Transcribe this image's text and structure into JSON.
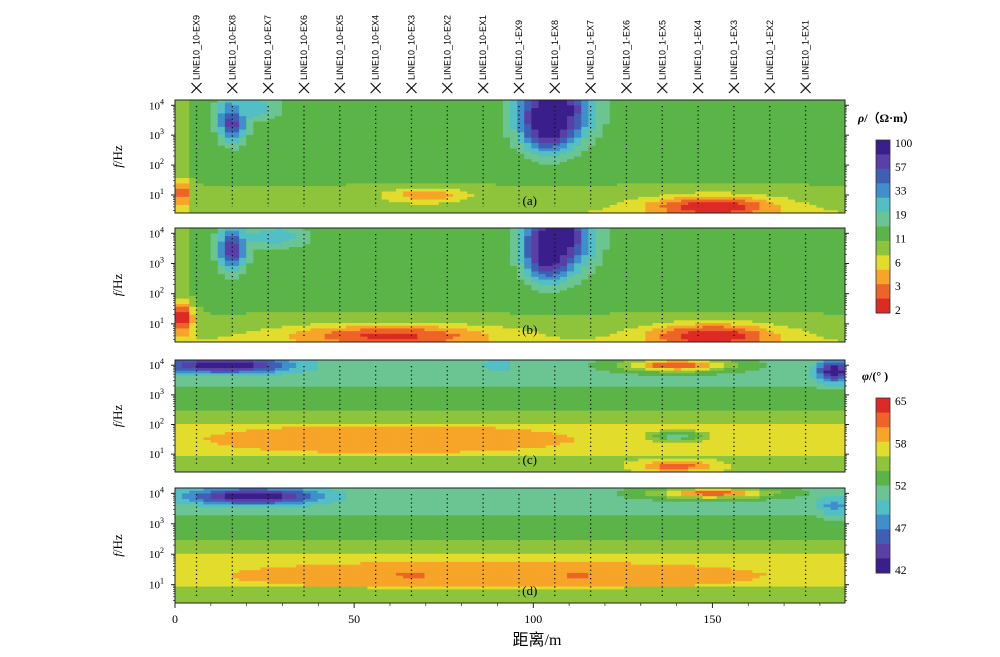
{
  "chart_data": {
    "type": "heatmap",
    "xlabel": "距离/m",
    "x_ticks": [
      0,
      50,
      100,
      150
    ],
    "xlim": [
      0,
      187
    ],
    "stations": [
      {
        "name": "LINE10_10-EX9",
        "x": 6
      },
      {
        "name": "LINE10_10-EX8",
        "x": 16
      },
      {
        "name": "LINE10_10-EX7",
        "x": 26
      },
      {
        "name": "LINE10_10-EX6",
        "x": 36
      },
      {
        "name": "LINE10_10-EX5",
        "x": 46
      },
      {
        "name": "LINE10_10-EX4",
        "x": 56
      },
      {
        "name": "LINE10_10-EX3",
        "x": 66
      },
      {
        "name": "LINE10_10-EX2",
        "x": 76
      },
      {
        "name": "LINE10_10-EX1",
        "x": 86
      },
      {
        "name": "LINE10_1-EX9",
        "x": 96
      },
      {
        "name": "LINE10_1-EX8",
        "x": 106
      },
      {
        "name": "LINE10_1-EX7",
        "x": 116
      },
      {
        "name": "LINE10_1-EX6",
        "x": 126
      },
      {
        "name": "LINE10_1-EX5",
        "x": 136
      },
      {
        "name": "LINE10_1-EX4",
        "x": 146
      },
      {
        "name": "LINE10_1-EX3",
        "x": 156
      },
      {
        "name": "LINE10_1-EX2",
        "x": 166
      },
      {
        "name": "LINE10_1-EX1",
        "x": 176
      }
    ],
    "y_scale": "log",
    "ylim_hz": [
      2.5,
      15000
    ],
    "y_tick_values": [
      10,
      100,
      1000,
      10000
    ],
    "y_tick_exponents": [
      "1",
      "2",
      "3",
      "4"
    ],
    "y_tick_base": "10",
    "ylabel_italic": "f",
    "ylabel_rest": "/Hz",
    "panels": [
      {
        "label": "(a)",
        "quantity": "rho",
        "anomalies": [
          {
            "x": 106,
            "log_f": 3.9,
            "value": 100,
            "rx": 13,
            "ry": 1.4
          },
          {
            "x": 104,
            "log_f": 3.3,
            "value": 100,
            "rx": 8,
            "ry": 1.0
          },
          {
            "x": 16,
            "log_f": 3.5,
            "value": 70,
            "rx": 5,
            "ry": 0.9
          },
          {
            "x": 22,
            "log_f": 3.9,
            "value": 25,
            "rx": 10,
            "ry": 0.5
          },
          {
            "x": 150,
            "log_f": 0.6,
            "value": 2,
            "rx": 22,
            "ry": 0.45
          },
          {
            "x": 70,
            "log_f": 1.0,
            "value": 4,
            "rx": 14,
            "ry": 0.28
          },
          {
            "x": 2,
            "log_f": 1.1,
            "value": 3,
            "rx": 3,
            "ry": 0.5
          }
        ]
      },
      {
        "label": "(b)",
        "quantity": "rho",
        "anomalies": [
          {
            "x": 107,
            "log_f": 3.9,
            "value": 100,
            "rx": 12,
            "ry": 1.4
          },
          {
            "x": 104,
            "log_f": 3.3,
            "value": 100,
            "rx": 7,
            "ry": 1.0
          },
          {
            "x": 16,
            "log_f": 3.5,
            "value": 75,
            "rx": 5,
            "ry": 0.9
          },
          {
            "x": 28,
            "log_f": 3.9,
            "value": 25,
            "rx": 12,
            "ry": 0.5
          },
          {
            "x": 150,
            "log_f": 0.6,
            "value": 2,
            "rx": 22,
            "ry": 0.5
          },
          {
            "x": 60,
            "log_f": 0.6,
            "value": 2.5,
            "rx": 35,
            "ry": 0.45
          },
          {
            "x": 2,
            "log_f": 1.2,
            "value": 2,
            "rx": 4,
            "ry": 0.6
          }
        ]
      },
      {
        "label": "(c)",
        "quantity": "phi",
        "anomalies": [
          {
            "x": 14,
            "log_f": 4.0,
            "value": 40,
            "rx": 24,
            "ry": 0.35
          },
          {
            "x": 184,
            "log_f": 3.8,
            "value": 40,
            "rx": 6,
            "ry": 0.45
          },
          {
            "x": 140,
            "log_f": 4.0,
            "value": 65,
            "rx": 18,
            "ry": 0.25
          },
          {
            "x": 60,
            "log_f": 1.5,
            "value": 61,
            "rx": 55,
            "ry": 0.5
          },
          {
            "x": 140,
            "log_f": 1.6,
            "value": 52,
            "rx": 10,
            "ry": 0.25
          },
          {
            "x": 140,
            "log_f": 0.6,
            "value": 64,
            "rx": 14,
            "ry": 0.25
          },
          {
            "x": 90,
            "log_f": 4.0,
            "value": 49,
            "rx": 6,
            "ry": 0.25
          }
        ]
      },
      {
        "label": "(d)",
        "quantity": "phi",
        "anomalies": [
          {
            "x": 22,
            "log_f": 3.9,
            "value": 40,
            "rx": 24,
            "ry": 0.35
          },
          {
            "x": 184,
            "log_f": 3.6,
            "value": 48,
            "rx": 6,
            "ry": 0.4
          },
          {
            "x": 150,
            "log_f": 4.0,
            "value": 64,
            "rx": 20,
            "ry": 0.2
          },
          {
            "x": 90,
            "log_f": 1.3,
            "value": 61,
            "rx": 80,
            "ry": 0.5
          },
          {
            "x": 66,
            "log_f": 1.3,
            "value": 64,
            "rx": 8,
            "ry": 0.1
          },
          {
            "x": 112,
            "log_f": 1.3,
            "value": 64,
            "rx": 6,
            "ry": 0.1
          }
        ]
      }
    ],
    "colorbars": [
      {
        "quantity": "rho",
        "title_var": "ρ",
        "title_rest": "/（Ω·m）",
        "ticks": [
          "100",
          "57",
          "33",
          "19",
          "11",
          "6",
          "3",
          "2"
        ],
        "scale": "log",
        "range": [
          2,
          100
        ]
      },
      {
        "quantity": "phi",
        "title_var": "φ",
        "title_rest": "/(°  )",
        "ticks": [
          "65",
          "58",
          "52",
          "47",
          "42"
        ],
        "scale": "linear",
        "range": [
          40,
          67
        ]
      }
    ],
    "palette": [
      "#3a1e8c",
      "#5a3fa7",
      "#3f5fb5",
      "#3e8fcb",
      "#52bfc4",
      "#6ac592",
      "#5ab448",
      "#8ec43c",
      "#e2dd2c",
      "#f6a528",
      "#ee6428",
      "#de2a24"
    ]
  }
}
